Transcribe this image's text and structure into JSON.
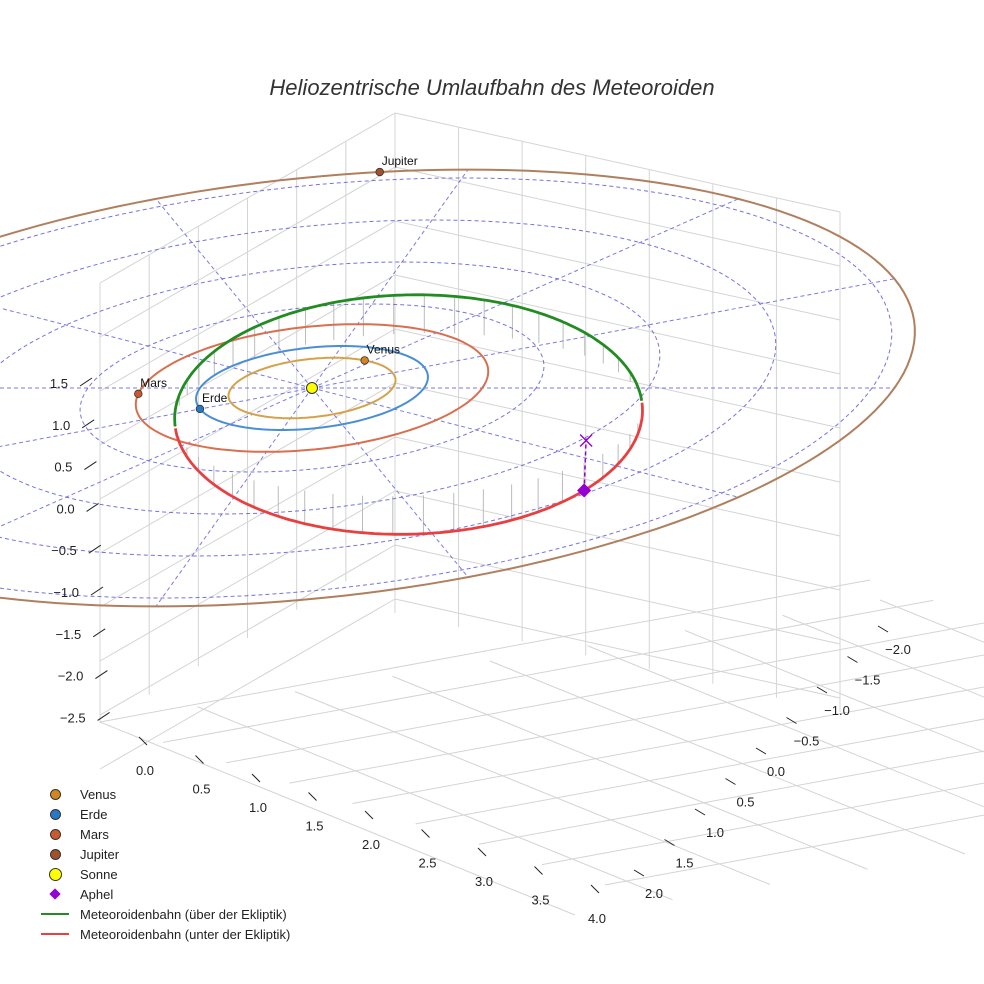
{
  "chart_data": {
    "type": "line",
    "title": "Heliozentrische Umlaufbahn des Meteoroiden",
    "projection": "3d",
    "xlabel": "",
    "ylabel": "",
    "zlabel": "",
    "grid": true,
    "legend_position": "bottom-left",
    "x_ticks": [
      "0.0",
      "0.5",
      "1.0",
      "1.5",
      "2.0",
      "2.5",
      "3.0",
      "3.5",
      "4.0"
    ],
    "y_ticks": [
      "−2.0",
      "−1.5",
      "−1.0",
      "−0.5",
      "0.0",
      "0.5",
      "1.0",
      "1.5",
      "2.0"
    ],
    "z_ticks": [
      "1.5",
      "1.0",
      "0.5",
      "0.0",
      "−0.5",
      "−1.0",
      "−1.5",
      "−2.0",
      "−2.5"
    ],
    "planets": [
      {
        "name": "Venus",
        "label": "Venus",
        "orbit_radius_au": 0.72,
        "color": "#d4a24a",
        "marker_color": "#d4851f"
      },
      {
        "name": "Erde",
        "label": "Erde",
        "orbit_radius_au": 1.0,
        "color": "#4a8fd4",
        "marker_color": "#2a78c4"
      },
      {
        "name": "Mars",
        "label": "Mars",
        "orbit_radius_au": 1.52,
        "color": "#d87050",
        "marker_color": "#c95a2e"
      },
      {
        "name": "Jupiter",
        "label": "Jupiter",
        "orbit_radius_au": 5.2,
        "color": "#b07f5e",
        "marker_color": "#a0522d"
      }
    ],
    "sun": {
      "name": "Sonne",
      "color": "#ffff00"
    },
    "aphel": {
      "name": "Aphel",
      "color": "#9400d3"
    },
    "series": [
      {
        "name": "Meteoroidenbahn (über der Ekliptik)",
        "color": "#228b22"
      },
      {
        "name": "Meteoroidenbahn (unter der Ekliptik)",
        "color": "#e84040"
      }
    ],
    "legend": [
      {
        "label": "Venus",
        "kind": "dot",
        "color": "#d4851f"
      },
      {
        "label": "Erde",
        "kind": "dot",
        "color": "#2a78c4"
      },
      {
        "label": "Mars",
        "kind": "dot",
        "color": "#c95a2e"
      },
      {
        "label": "Jupiter",
        "kind": "dot",
        "color": "#a0522d"
      },
      {
        "label": "Sonne",
        "kind": "sun",
        "color": "#ffff00"
      },
      {
        "label": "Aphel",
        "kind": "diamond",
        "color": "#9400d3"
      },
      {
        "label": "Meteoroidenbahn (über der Ekliptik)",
        "kind": "line",
        "color": "#228b22"
      },
      {
        "label": "Meteoroidenbahn (unter der Ekliptik)",
        "kind": "line",
        "color": "#e84040"
      }
    ]
  }
}
